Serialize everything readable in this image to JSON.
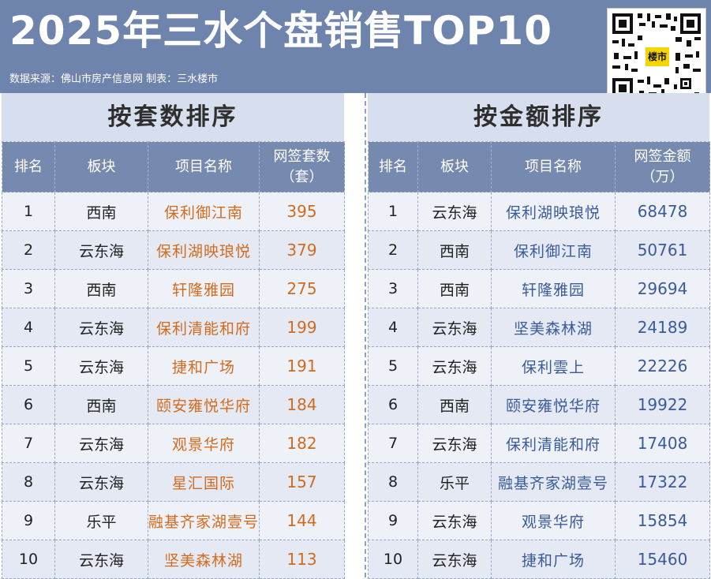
{
  "header": {
    "title": "2025年三水个盘销售TOP10",
    "source": "数据来源：佛山市房产信息网    制表：三水楼市",
    "qr_logo": "楼市"
  },
  "left": {
    "section_title": "按套数排序",
    "headers": {
      "rank": "排名",
      "block": "板块",
      "project": "项目名称",
      "value_line1": "网签套数",
      "value_line2": "（套）"
    },
    "rows": [
      {
        "rank": "1",
        "block": "西南",
        "project": "保利御江南",
        "value": "395"
      },
      {
        "rank": "2",
        "block": "云东海",
        "project": "保利湖映琅悦",
        "value": "379"
      },
      {
        "rank": "3",
        "block": "西南",
        "project": "轩隆雅园",
        "value": "275"
      },
      {
        "rank": "4",
        "block": "云东海",
        "project": "保利清能和府",
        "value": "199"
      },
      {
        "rank": "5",
        "block": "云东海",
        "project": "捷和广场",
        "value": "191"
      },
      {
        "rank": "6",
        "block": "西南",
        "project": "颐安雍悦华府",
        "value": "184"
      },
      {
        "rank": "7",
        "block": "云东海",
        "project": "观景华府",
        "value": "182"
      },
      {
        "rank": "8",
        "block": "云东海",
        "project": "星汇国际",
        "value": "157"
      },
      {
        "rank": "9",
        "block": "乐平",
        "project": "融基齐家湖壹号",
        "value": "144"
      },
      {
        "rank": "10",
        "block": "云东海",
        "project": "坚美森林湖",
        "value": "113"
      }
    ]
  },
  "right": {
    "section_title": "按金额排序",
    "headers": {
      "rank": "排名",
      "block": "板块",
      "project": "项目名称",
      "value_line1": "网签金额",
      "value_line2": "（万）"
    },
    "rows": [
      {
        "rank": "1",
        "block": "云东海",
        "project": "保利湖映琅悦",
        "value": "68478"
      },
      {
        "rank": "2",
        "block": "西南",
        "project": "保利御江南",
        "value": "50761"
      },
      {
        "rank": "3",
        "block": "西南",
        "project": "轩隆雅园",
        "value": "29694"
      },
      {
        "rank": "4",
        "block": "云东海",
        "project": "坚美森林湖",
        "value": "24189"
      },
      {
        "rank": "5",
        "block": "云东海",
        "project": "保利雲上",
        "value": "22226"
      },
      {
        "rank": "6",
        "block": "西南",
        "project": "颐安雍悦华府",
        "value": "19922"
      },
      {
        "rank": "7",
        "block": "云东海",
        "project": "保利清能和府",
        "value": "17408"
      },
      {
        "rank": "8",
        "block": "乐平",
        "project": "融基齐家湖壹号",
        "value": "17322"
      },
      {
        "rank": "9",
        "block": "云东海",
        "project": "观景华府",
        "value": "15854"
      },
      {
        "rank": "10",
        "block": "云东海",
        "project": "捷和广场",
        "value": "15460"
      }
    ]
  }
}
